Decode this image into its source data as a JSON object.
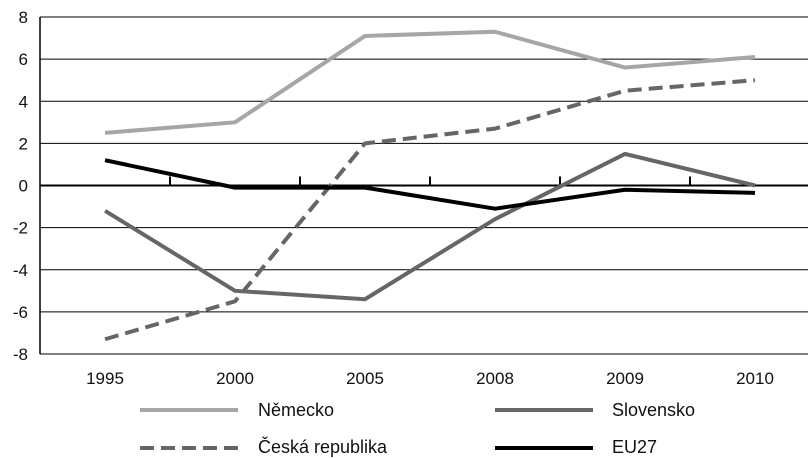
{
  "chart_data": {
    "type": "line",
    "categories": [
      "1995",
      "2000",
      "2005",
      "2008",
      "2009",
      "2010"
    ],
    "ylim": [
      -8,
      8
    ],
    "yticks": [
      8,
      6,
      4,
      2,
      0,
      -2,
      -4,
      -6,
      -8
    ],
    "grid": true,
    "legend_position": "bottom",
    "series": [
      {
        "name": "Německo",
        "values": [
          2.5,
          3.0,
          7.1,
          7.3,
          5.6,
          6.1
        ],
        "color": "#a6a6a6",
        "style": "solid"
      },
      {
        "name": "Slovensko",
        "values": [
          -1.2,
          -5.0,
          -5.4,
          -1.6,
          1.5,
          0.0
        ],
        "color": "#666666",
        "style": "solid"
      },
      {
        "name": "Česká republika",
        "values": [
          -7.3,
          -5.5,
          2.0,
          2.7,
          4.5,
          5.0
        ],
        "color": "#666666",
        "style": "dashed"
      },
      {
        "name": "EU27",
        "values": [
          1.2,
          -0.1,
          -0.1,
          -1.1,
          -0.2,
          -0.35
        ],
        "color": "#000000",
        "style": "solid"
      }
    ]
  }
}
